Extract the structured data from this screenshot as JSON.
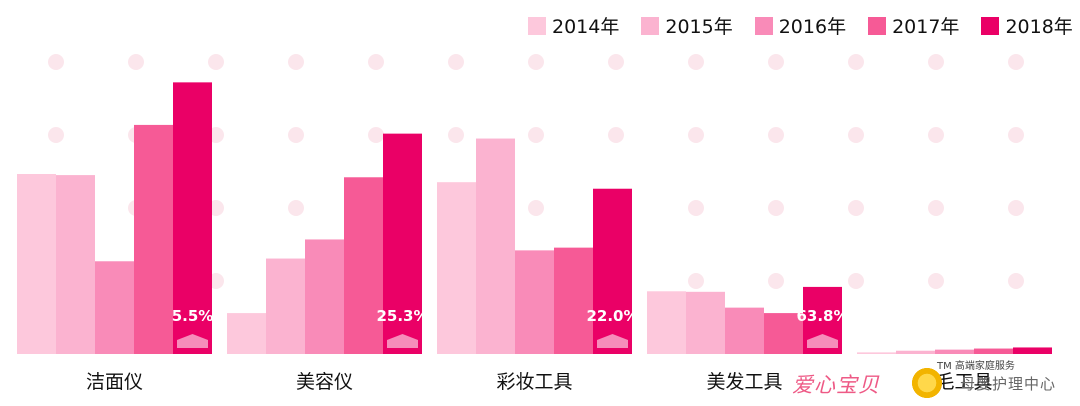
{
  "chart_data": {
    "type": "bar",
    "categories": [
      "洁面仪",
      "美容仪",
      "彩妆工具",
      "美发工具",
      "脱毛工具"
    ],
    "series": [
      {
        "name": "2014年",
        "values": [
          33,
          7.5,
          31.5,
          11.5,
          0.3
        ]
      },
      {
        "name": "2015年",
        "values": [
          32.8,
          17.5,
          39.5,
          11.4,
          0.6
        ]
      },
      {
        "name": "2016年",
        "values": [
          17,
          21,
          19,
          8.5,
          0.8
        ]
      },
      {
        "name": "2017年",
        "values": [
          42,
          32.4,
          19.5,
          7.5,
          1
        ]
      },
      {
        "name": "2018年",
        "values": [
          49.8,
          40.4,
          30.3,
          12.3,
          1.2
        ]
      }
    ],
    "growth_labels": [
      "5.5%",
      "25.3%",
      "22.0%",
      "63.8%",
      ""
    ],
    "ylim": [
      0,
      55
    ],
    "grid": false,
    "legend_position": "top-right",
    "colors": [
      "#fdc8dc",
      "#fbb3d0",
      "#f98bb8",
      "#f65a96",
      "#ea0066"
    ],
    "title": "",
    "xlabel": "",
    "ylabel": ""
  },
  "watermark": {
    "brand": "爱心宝贝",
    "tm": "TM 高端家庭服务",
    "subtitle": "母婴护理中心"
  }
}
